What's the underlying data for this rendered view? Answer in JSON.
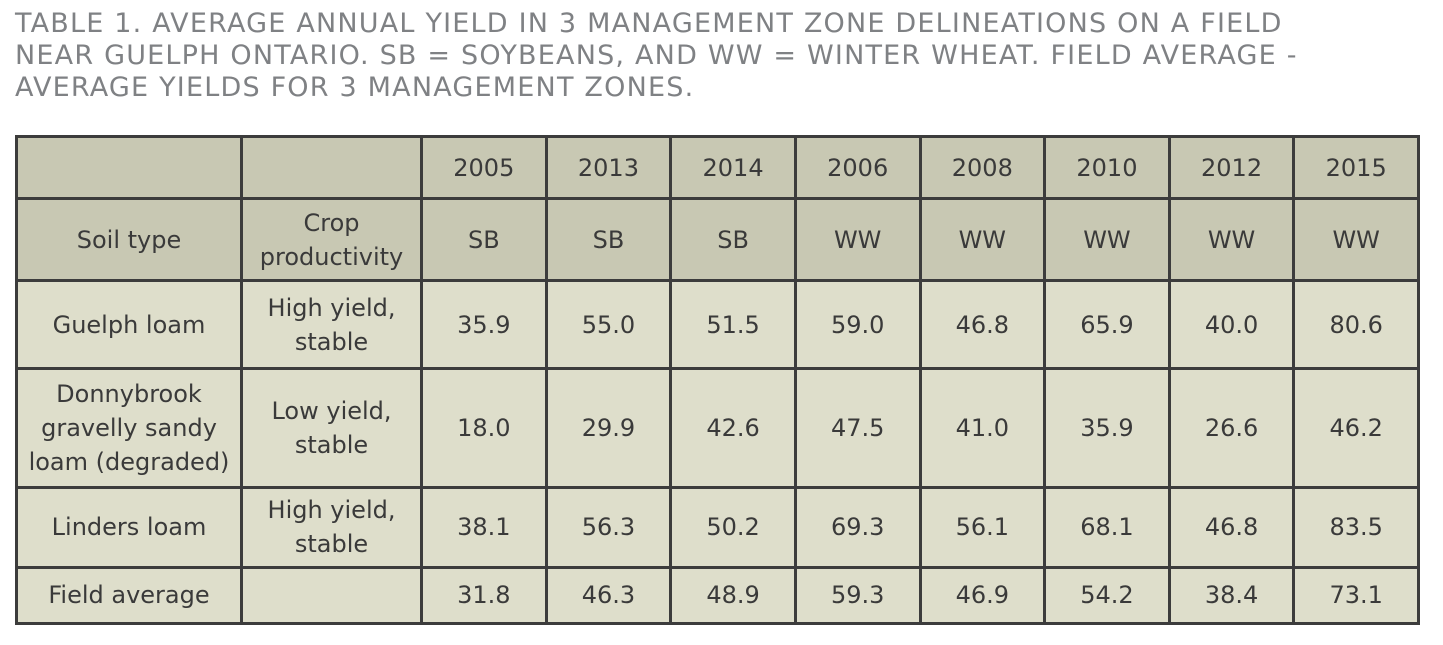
{
  "caption": "TABLE 1. AVERAGE ANNUAL YIELD IN 3 MANAGEMENT ZONE DELINEATIONS ON A FIELD\nNEAR GUELPH ONTARIO. SB = SOYBEANS, AND WW = WINTER WHEAT. FIELD AVERAGE -\nAVERAGE YIELDS FOR 3 MANAGEMENT ZONES.",
  "years": [
    "2005",
    "2013",
    "2014",
    "2006",
    "2008",
    "2010",
    "2012",
    "2015"
  ],
  "header2": {
    "soil_type": "Soil type",
    "crop_productivity": "Crop\nproductivity",
    "crops": [
      "SB",
      "SB",
      "SB",
      "WW",
      "WW",
      "WW",
      "WW",
      "WW"
    ]
  },
  "rows": [
    {
      "soil": "Guelph loam",
      "productivity": "High yield,\nstable",
      "values": [
        "35.9",
        "55.0",
        "51.5",
        "59.0",
        "46.8",
        "65.9",
        "40.0",
        "80.6"
      ]
    },
    {
      "soil": "Donnybrook\ngravelly sandy\nloam (degraded)",
      "productivity": "Low yield,\nstable",
      "values": [
        "18.0",
        "29.9",
        "42.6",
        "47.5",
        "41.0",
        "35.9",
        "26.6",
        "46.2"
      ]
    },
    {
      "soil": "Linders loam",
      "productivity": "High yield,\nstable",
      "values": [
        "38.1",
        "56.3",
        "50.2",
        "69.3",
        "56.1",
        "68.1",
        "46.8",
        "83.5"
      ]
    },
    {
      "soil": "Field average",
      "productivity": "",
      "values": [
        "31.8",
        "46.3",
        "48.9",
        "59.3",
        "46.9",
        "54.2",
        "38.4",
        "73.1"
      ]
    }
  ],
  "colors": {
    "header_bg": "#c8c8b3",
    "body_bg": "#dedecb",
    "border": "#3c3c3c",
    "caption": "#7f8184"
  }
}
